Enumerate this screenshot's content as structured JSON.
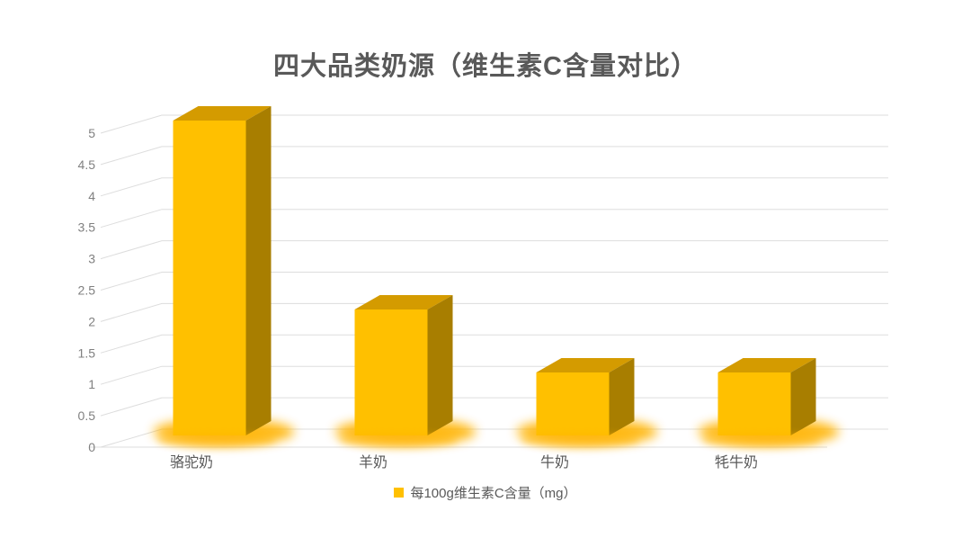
{
  "page": {
    "background": "#FFFFFF"
  },
  "chart_data": {
    "type": "bar",
    "variant": "3d-column",
    "title": "四大品类奶源（维生素C含量对比）",
    "categories": [
      "骆驼奶",
      "羊奶",
      "牛奶",
      "牦牛奶"
    ],
    "series": [
      {
        "name": "每100g维生素C含量（mg）",
        "values": [
          5,
          2,
          1,
          1
        ]
      }
    ],
    "xlabel": "",
    "ylabel": "",
    "ylim": [
      0,
      5
    ],
    "ytick_step": 0.5,
    "yticks": [
      0,
      0.5,
      1,
      1.5,
      2,
      2.5,
      3,
      3.5,
      4,
      4.5,
      5
    ],
    "grid": true,
    "legend_position": "bottom",
    "colors": {
      "bar_front": "#FFC000",
      "bar_top": "#D49B00",
      "bar_side": "#A87E00",
      "glow": "#FFB300",
      "gridline": "#DDDDDD",
      "title_text": "#595959",
      "axis_text": "#808080",
      "category_text": "#595959",
      "legend_text": "#595959",
      "background": "#FFFFFF"
    }
  },
  "legend": {
    "label": "每100g维生素C含量（mg）"
  }
}
